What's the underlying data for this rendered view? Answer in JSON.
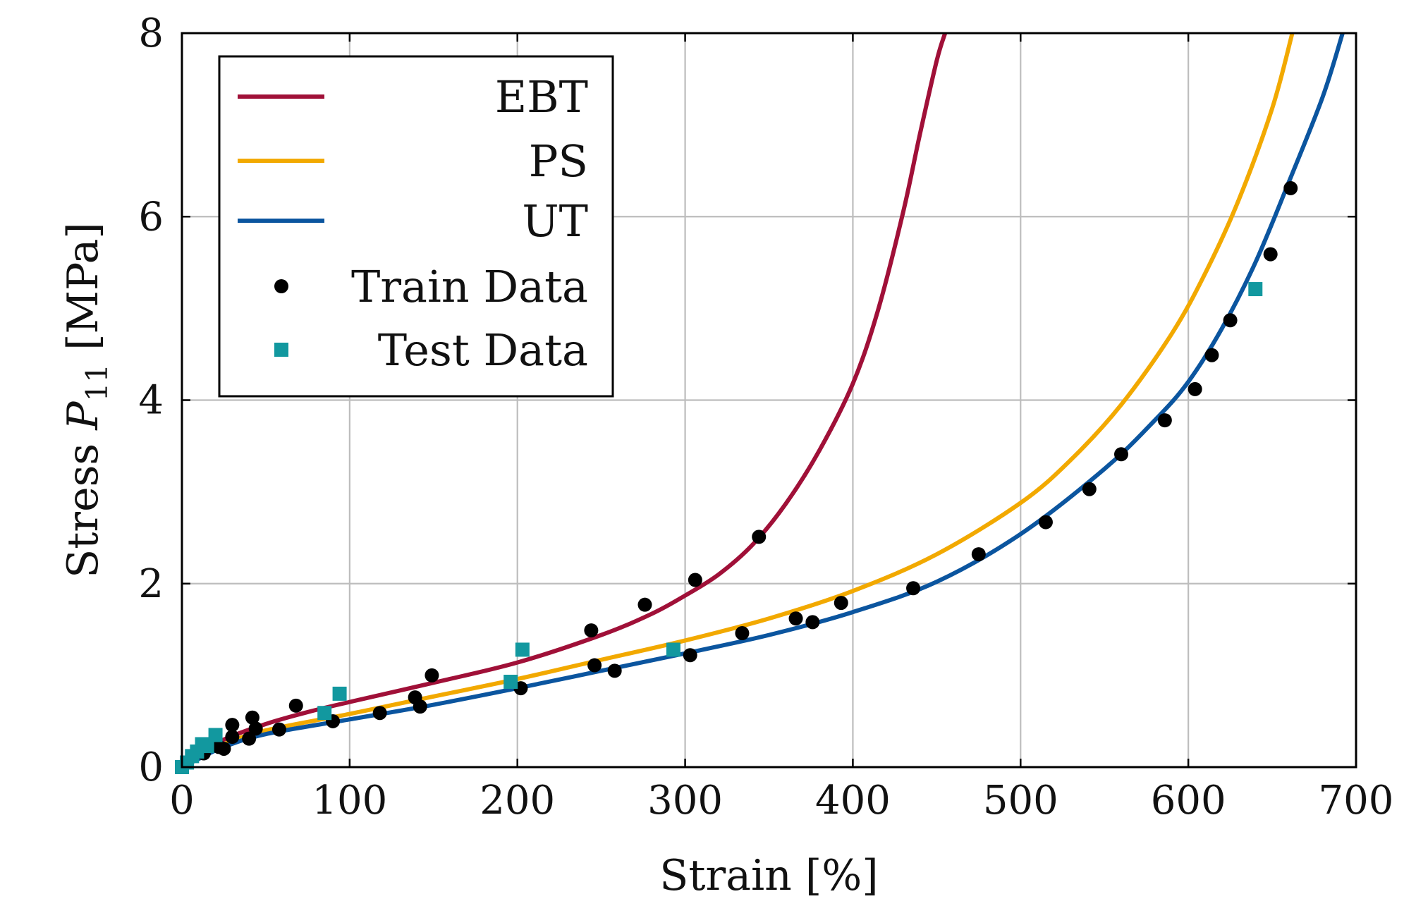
{
  "chart_data": {
    "type": "scatter",
    "xlabel": "Strain [%]",
    "ylabel": {
      "prefix": "Stress ",
      "symbol": "P",
      "subscript": "11",
      "unit": " [MPa]"
    },
    "xlim": [
      0,
      700
    ],
    "ylim": [
      0,
      8
    ],
    "xticks": [
      "0",
      "100",
      "200",
      "300",
      "400",
      "500",
      "600",
      "700"
    ],
    "yticks": [
      "0",
      "2",
      "4",
      "6",
      "8"
    ],
    "grid": true,
    "legend_position": "top-left",
    "series": [
      {
        "name": "EBT",
        "kind": "line",
        "color": "#a01038",
        "x": [
          0,
          10,
          25,
          50,
          75,
          100,
          150,
          200,
          250,
          280,
          300,
          320,
          340,
          360,
          380,
          400,
          415,
          430,
          440,
          450,
          455
        ],
        "y": [
          0,
          0.12,
          0.3,
          0.47,
          0.6,
          0.71,
          0.92,
          1.14,
          1.44,
          1.67,
          1.87,
          2.1,
          2.42,
          2.87,
          3.45,
          4.18,
          4.98,
          6.05,
          6.9,
          7.7,
          8.0
        ]
      },
      {
        "name": "PS",
        "kind": "line",
        "color": "#f2a900",
        "x": [
          0,
          10,
          25,
          50,
          100,
          150,
          200,
          250,
          300,
          350,
          400,
          450,
          500,
          530,
          560,
          590,
          610,
          630,
          650,
          662
        ],
        "y": [
          0,
          0.1,
          0.25,
          0.4,
          0.58,
          0.77,
          0.96,
          1.17,
          1.38,
          1.62,
          1.92,
          2.32,
          2.88,
          3.35,
          3.95,
          4.72,
          5.38,
          6.18,
          7.18,
          8.0
        ]
      },
      {
        "name": "UT",
        "kind": "line",
        "color": "#0b559f",
        "x": [
          0,
          10,
          25,
          50,
          100,
          150,
          200,
          250,
          300,
          350,
          400,
          450,
          500,
          550,
          580,
          600,
          620,
          640,
          660,
          680,
          692
        ],
        "y": [
          0,
          0.09,
          0.22,
          0.36,
          0.52,
          0.68,
          0.86,
          1.05,
          1.24,
          1.44,
          1.69,
          2.02,
          2.54,
          3.25,
          3.78,
          4.2,
          4.78,
          5.5,
          6.38,
          7.3,
          8.0
        ]
      },
      {
        "name": "Train Data",
        "kind": "points",
        "color": "#000000",
        "x": [
          13,
          22,
          25,
          30,
          30,
          40,
          42,
          44,
          58,
          68,
          90,
          118,
          139,
          142,
          149,
          202,
          244,
          246,
          258,
          276,
          303,
          306,
          334,
          344,
          366,
          376,
          393,
          436,
          475,
          515,
          541,
          560,
          586,
          604,
          614,
          625,
          649,
          661
        ],
        "y": [
          0.15,
          0.22,
          0.2,
          0.33,
          0.46,
          0.31,
          0.54,
          0.42,
          0.41,
          0.67,
          0.5,
          0.59,
          0.76,
          0.66,
          1.0,
          0.86,
          1.49,
          1.11,
          1.05,
          1.77,
          1.22,
          2.04,
          1.46,
          2.51,
          1.62,
          1.58,
          1.79,
          1.95,
          2.32,
          2.67,
          3.03,
          3.41,
          3.78,
          4.12,
          4.49,
          4.87,
          5.59,
          6.31
        ]
      },
      {
        "name": "Test Data",
        "kind": "squares",
        "color": "#12989f",
        "x": [
          0,
          3,
          6,
          9,
          12,
          15,
          20,
          85,
          94,
          196,
          203,
          293,
          640
        ],
        "y": [
          0.0,
          0.05,
          0.12,
          0.17,
          0.25,
          0.23,
          0.35,
          0.59,
          0.8,
          0.93,
          1.28,
          1.28,
          5.21
        ]
      }
    ]
  }
}
